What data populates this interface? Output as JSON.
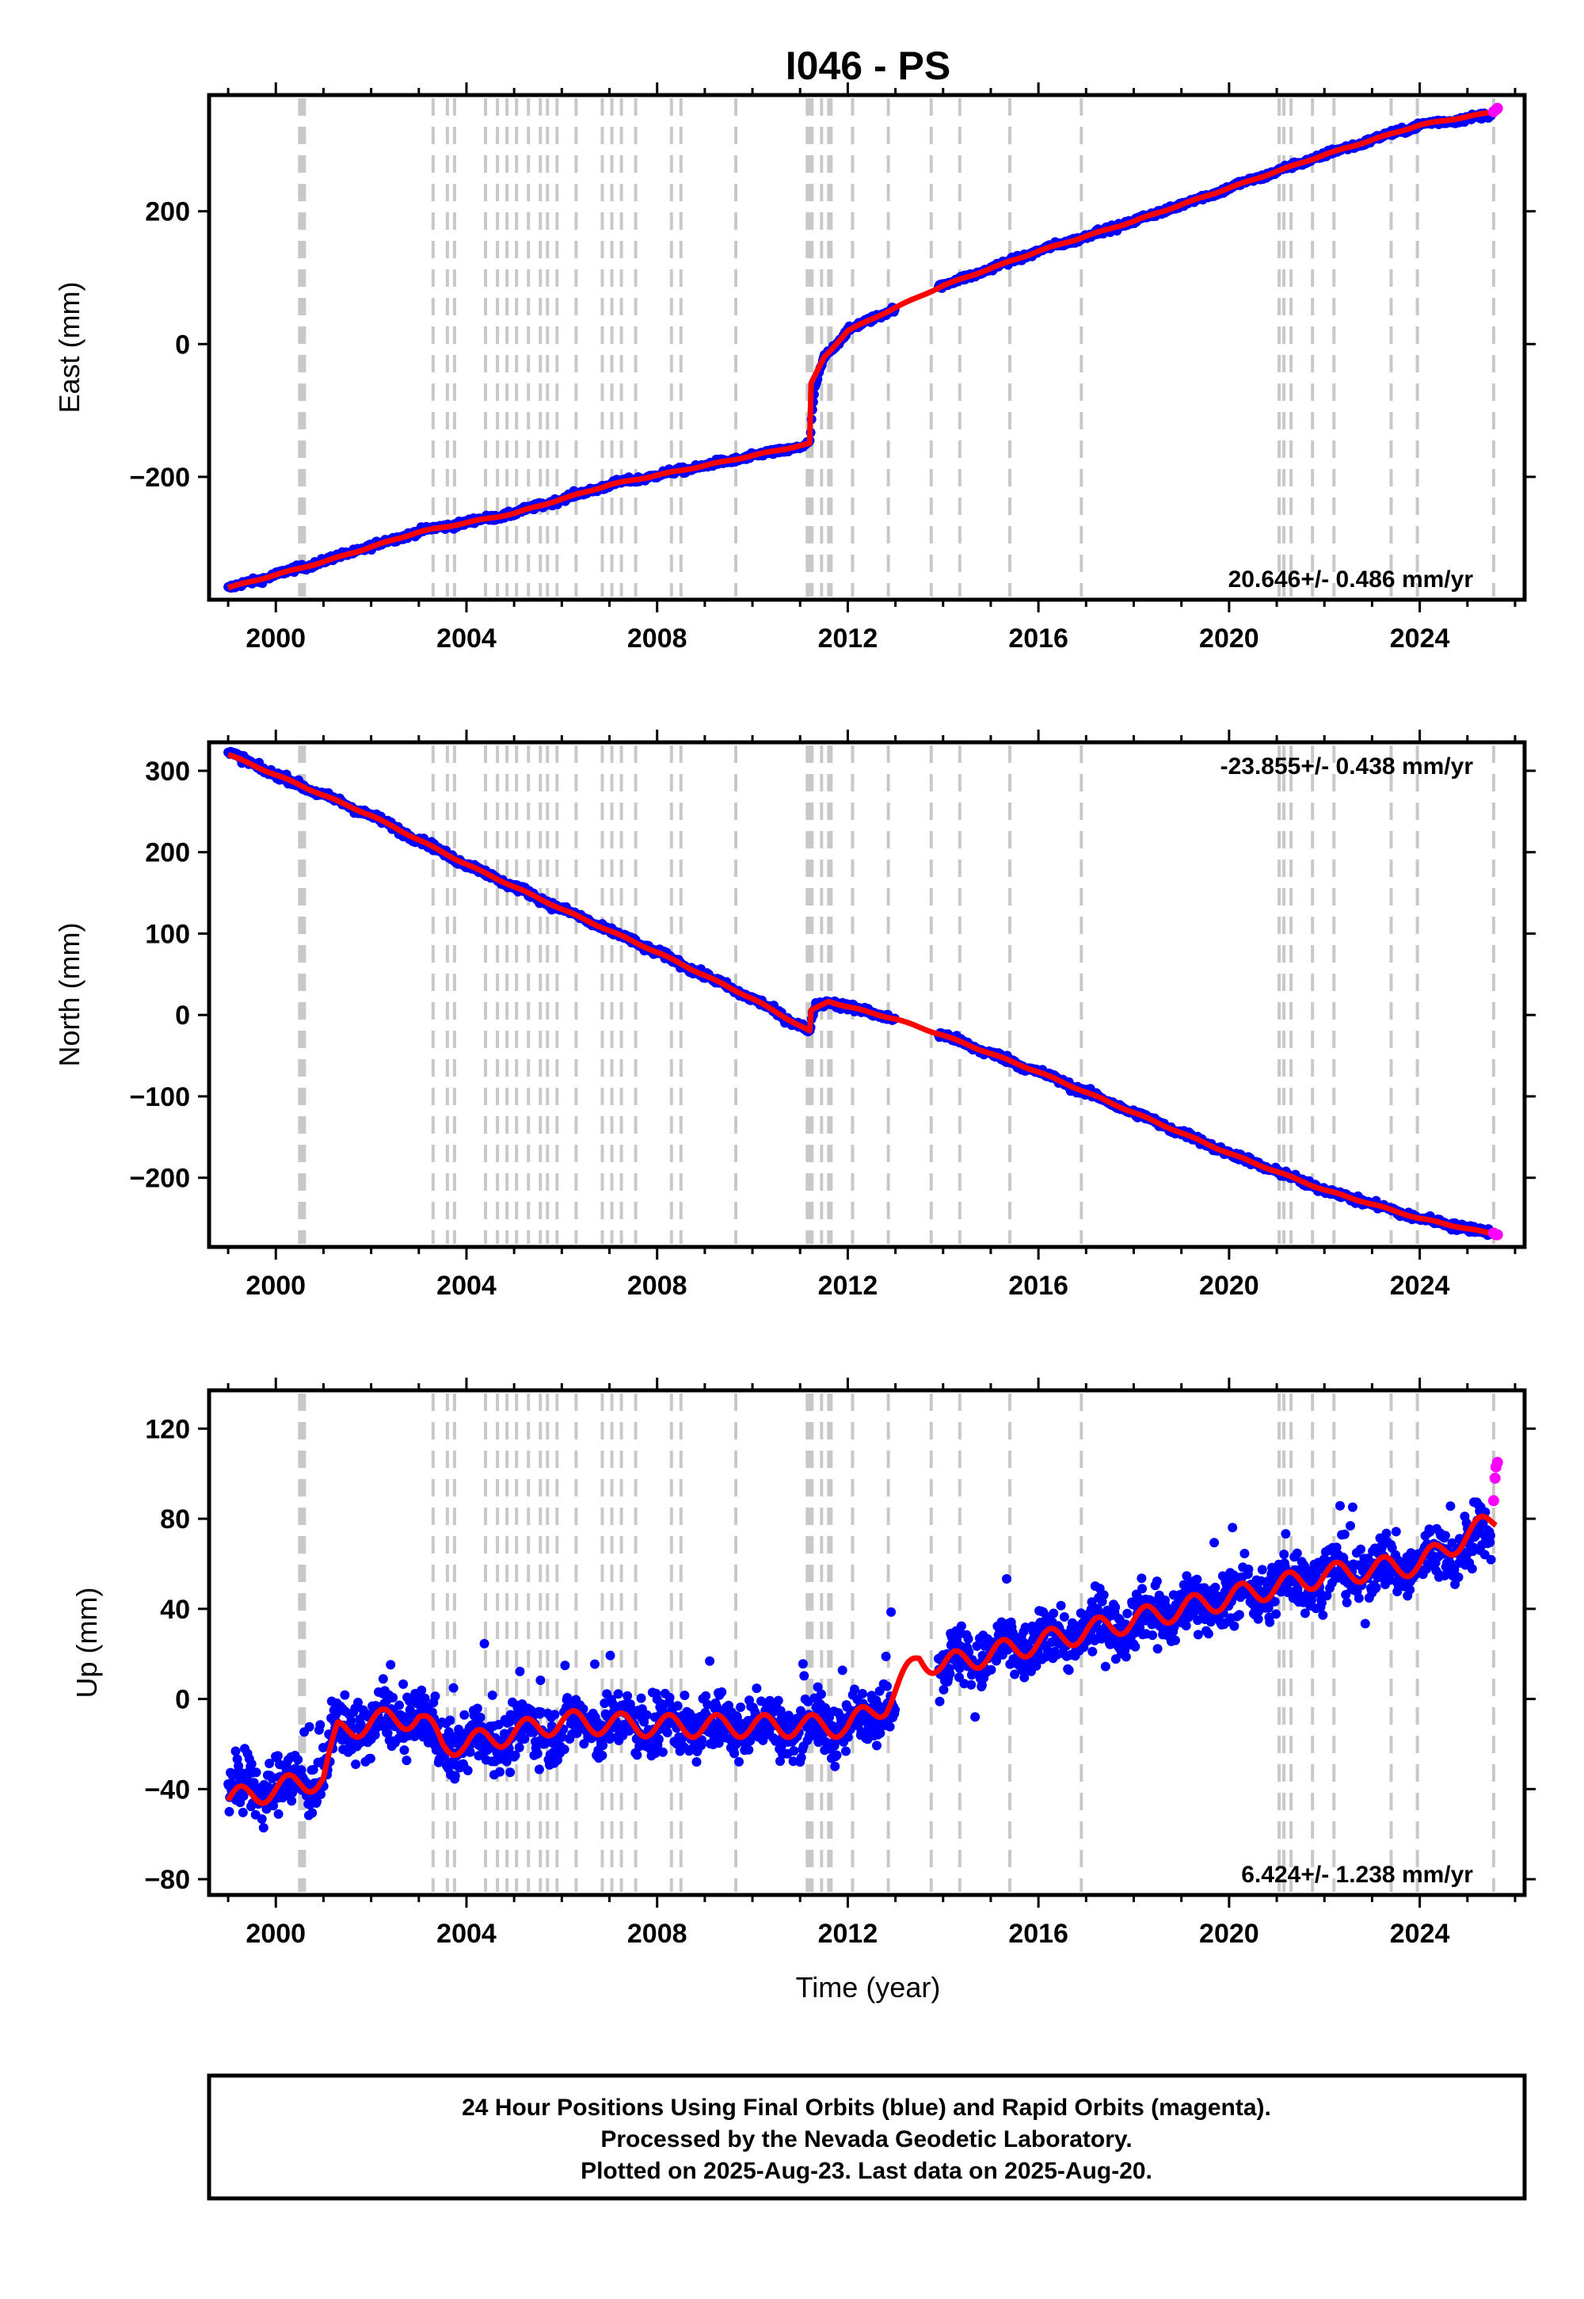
{
  "title": "I046 - PS",
  "colors": {
    "final_orbits": "#0000ff",
    "rapid_orbits": "#ff00ff",
    "model": "#ff0000",
    "events": "#c8c8c8"
  },
  "chart_data": [
    {
      "type": "scatter",
      "ylabel": "East (mm)",
      "xlim": [
        1998.6,
        2026.2
      ],
      "ylim": [
        -385,
        375
      ],
      "yticks": [
        -200,
        0,
        200
      ],
      "xticks": [
        2000,
        2004,
        2008,
        2012,
        2016,
        2020,
        2024
      ],
      "rate_label": "20.646+/- 0.486 mm/yr",
      "rate_position": "bottom-right",
      "series": [
        {
          "role": "final_orbits",
          "x": [
            1999.0,
            2001.0,
            2003.0,
            2005.0,
            2007.0,
            2009.0,
            2011.0,
            2011.2,
            2011.3,
            2011.5,
            2012.0,
            2013.0,
            2014.0,
            2016.0,
            2018.0,
            2020.0,
            2022.0,
            2024.0,
            2025.5
          ],
          "y": [
            -368,
            -327,
            -282,
            -255,
            -212,
            -183,
            -155,
            -150,
            -70,
            -20,
            20,
            55,
            88,
            140,
            185,
            235,
            285,
            330,
            345
          ]
        },
        {
          "role": "rapid_orbits",
          "x": [
            2025.55,
            2025.6,
            2025.63
          ],
          "y": [
            350,
            353,
            355
          ]
        },
        {
          "role": "model",
          "x": [
            1999.0,
            2001.0,
            2003.0,
            2005.0,
            2007.0,
            2009.0,
            2011.2,
            2011.23,
            2011.5,
            2012.0,
            2013.0,
            2014.0,
            2016.0,
            2018.0,
            2020.0,
            2022.0,
            2024.0,
            2025.6
          ],
          "y": [
            -367,
            -328,
            -283,
            -255,
            -212,
            -183,
            -150,
            -60,
            -20,
            20,
            55,
            88,
            140,
            185,
            235,
            285,
            330,
            350
          ]
        }
      ]
    },
    {
      "type": "scatter",
      "ylabel": "North (mm)",
      "xlim": [
        1998.6,
        2026.2
      ],
      "ylim": [
        -285,
        335
      ],
      "yticks": [
        -200,
        -100,
        0,
        100,
        200,
        300
      ],
      "xticks": [
        2000,
        2004,
        2008,
        2012,
        2016,
        2020,
        2024
      ],
      "rate_label": "-23.855+/- 0.438 mm/yr",
      "rate_position": "top-right",
      "series": [
        {
          "role": "final_orbits",
          "x": [
            1999.0,
            2000.0,
            2002.0,
            2004.0,
            2006.0,
            2008.0,
            2010.0,
            2011.2,
            2011.3,
            2011.6,
            2012.0,
            2013.0,
            2014.0,
            2016.0,
            2018.0,
            2020.0,
            2022.0,
            2024.0,
            2025.5
          ],
          "y": [
            322,
            295,
            245,
            185,
            130,
            77,
            20,
            -20,
            10,
            17,
            10,
            -5,
            -25,
            -70,
            -120,
            -170,
            -215,
            -250,
            -268
          ]
        },
        {
          "role": "rapid_orbits",
          "x": [
            2025.55,
            2025.6,
            2025.63
          ],
          "y": [
            -268,
            -270,
            -270
          ]
        },
        {
          "role": "model",
          "x": [
            1999.0,
            2000.0,
            2002.0,
            2004.0,
            2006.0,
            2008.0,
            2010.0,
            2011.2,
            2011.23,
            2011.6,
            2012.0,
            2013.0,
            2014.0,
            2016.0,
            2018.0,
            2020.0,
            2022.0,
            2024.0,
            2025.6
          ],
          "y": [
            320,
            295,
            245,
            185,
            130,
            77,
            20,
            -20,
            5,
            17,
            10,
            -5,
            -25,
            -70,
            -120,
            -170,
            -215,
            -250,
            -270
          ]
        }
      ]
    },
    {
      "type": "scatter",
      "ylabel": "Up (mm)",
      "xlabel": "Time (year)",
      "xlim": [
        1998.6,
        2026.2
      ],
      "ylim": [
        -87,
        137
      ],
      "yticks": [
        -80,
        -40,
        0,
        40,
        80,
        120
      ],
      "xticks": [
        2000,
        2004,
        2008,
        2012,
        2016,
        2020,
        2024
      ],
      "rate_label": "6.424+/- 1.238 mm/yr",
      "rate_position": "bottom-right",
      "series": [
        {
          "role": "final_orbits",
          "x": [
            1999.0,
            2000.0,
            2001.0,
            2001.3,
            2002.0,
            2003.0,
            2003.5,
            2004.0,
            2006.0,
            2008.0,
            2010.0,
            2012.0,
            2012.8,
            2013.5,
            2014.0,
            2016.0,
            2018.0,
            2020.0,
            2022.0,
            2024.0,
            2025.5
          ],
          "y": [
            -42,
            -38,
            -35,
            -12,
            -12,
            -8,
            -20,
            -20,
            -12,
            -12,
            -12,
            -12,
            -2,
            18,
            15,
            25,
            35,
            45,
            55,
            60,
            72
          ]
        },
        {
          "role": "rapid_orbits",
          "x": [
            2025.55,
            2025.58,
            2025.6,
            2025.63
          ],
          "y": [
            88,
            98,
            103,
            105
          ]
        },
        {
          "role": "model",
          "x": [
            1999.0,
            2000.0,
            2001.0,
            2001.3,
            2002.0,
            2003.0,
            2003.5,
            2004.0,
            2006.0,
            2008.0,
            2010.0,
            2012.0,
            2012.8,
            2013.5,
            2014.0,
            2016.0,
            2018.0,
            2020.0,
            2022.0,
            2024.0,
            2025.6
          ],
          "y": [
            -45,
            -40,
            -35,
            -15,
            -10,
            -8,
            -20,
            -20,
            -10,
            -12,
            -12,
            -12,
            -2,
            18,
            15,
            25,
            35,
            45,
            55,
            60,
            80
          ]
        }
      ]
    }
  ],
  "event_years": [
    2000.5,
    2000.52,
    2000.55,
    2000.58,
    2000.6,
    2003.3,
    2003.6,
    2003.75,
    2004.4,
    2004.65,
    2004.85,
    2005.05,
    2005.3,
    2005.55,
    2005.7,
    2005.9,
    2006.3,
    2006.85,
    2007.05,
    2007.25,
    2007.55,
    2008.3,
    2008.5,
    2009.65,
    2011.15,
    2011.2,
    2011.25,
    2011.45,
    2011.6,
    2011.65,
    2012.1,
    2012.85,
    2013.75,
    2014.35,
    2015.4,
    2016.9,
    2021.05,
    2021.15,
    2021.3,
    2021.75,
    2022.2,
    2023.4,
    2023.95,
    2025.55
  ],
  "footer": {
    "line1": "24 Hour Positions Using Final Orbits (blue) and Rapid Orbits (magenta).",
    "line2": "Processed by the Nevada Geodetic Laboratory.",
    "line3": "Plotted on 2025-Aug-23. Last data on 2025-Aug-20."
  }
}
